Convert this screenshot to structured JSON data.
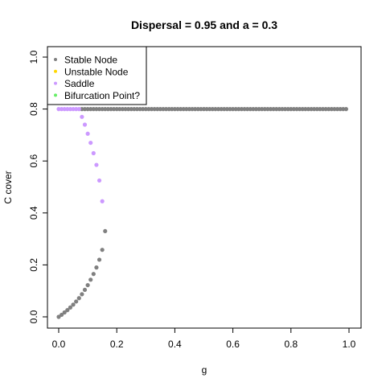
{
  "chart_data": {
    "type": "scatter",
    "title": "Dispersal =  0.95 and a = 0.3",
    "xlabel": "g",
    "ylabel": "C cover",
    "xlim": [
      0,
      1.0
    ],
    "ylim": [
      0,
      1.0
    ],
    "xticks": [
      "0.0",
      "0.2",
      "0.4",
      "0.6",
      "0.8",
      "1.0"
    ],
    "yticks": [
      "0.0",
      "0.2",
      "0.4",
      "0.6",
      "0.8",
      "1.0"
    ],
    "legend_position": "top-left",
    "legend": [
      {
        "label": "Stable Node",
        "color": "#808080"
      },
      {
        "label": "Unstable Node",
        "color": "#FFD700"
      },
      {
        "label": "Saddle",
        "color": "#CC99FF"
      },
      {
        "label": "Bifurcation Point?",
        "color": "#66EE66"
      }
    ],
    "series": [
      {
        "name": "Stable Node",
        "color": "#808080",
        "points": [
          [
            0.0,
            0.0
          ],
          [
            0.01,
            0.008
          ],
          [
            0.02,
            0.017
          ],
          [
            0.03,
            0.026
          ],
          [
            0.04,
            0.036
          ],
          [
            0.05,
            0.047
          ],
          [
            0.06,
            0.059
          ],
          [
            0.07,
            0.072
          ],
          [
            0.08,
            0.087
          ],
          [
            0.09,
            0.104
          ],
          [
            0.1,
            0.122
          ],
          [
            0.11,
            0.143
          ],
          [
            0.12,
            0.165
          ],
          [
            0.13,
            0.19
          ],
          [
            0.14,
            0.22
          ],
          [
            0.15,
            0.258
          ],
          [
            0.16,
            0.33
          ],
          [
            0.08,
            0.8
          ],
          [
            0.09,
            0.8
          ],
          [
            0.1,
            0.8
          ],
          [
            0.11,
            0.8
          ],
          [
            0.12,
            0.8
          ],
          [
            0.13,
            0.8
          ],
          [
            0.14,
            0.8
          ],
          [
            0.15,
            0.8
          ],
          [
            0.16,
            0.8
          ],
          [
            0.17,
            0.8
          ],
          [
            0.18,
            0.8
          ],
          [
            0.19,
            0.8
          ],
          [
            0.2,
            0.8
          ],
          [
            0.21,
            0.8
          ],
          [
            0.22,
            0.8
          ],
          [
            0.23,
            0.8
          ],
          [
            0.24,
            0.8
          ],
          [
            0.25,
            0.8
          ],
          [
            0.26,
            0.8
          ],
          [
            0.27,
            0.8
          ],
          [
            0.28,
            0.8
          ],
          [
            0.29,
            0.8
          ],
          [
            0.3,
            0.8
          ],
          [
            0.31,
            0.8
          ],
          [
            0.32,
            0.8
          ],
          [
            0.33,
            0.8
          ],
          [
            0.34,
            0.8
          ],
          [
            0.35,
            0.8
          ],
          [
            0.36,
            0.8
          ],
          [
            0.37,
            0.8
          ],
          [
            0.38,
            0.8
          ],
          [
            0.39,
            0.8
          ],
          [
            0.4,
            0.8
          ],
          [
            0.41,
            0.8
          ],
          [
            0.42,
            0.8
          ],
          [
            0.43,
            0.8
          ],
          [
            0.44,
            0.8
          ],
          [
            0.45,
            0.8
          ],
          [
            0.46,
            0.8
          ],
          [
            0.47,
            0.8
          ],
          [
            0.48,
            0.8
          ],
          [
            0.49,
            0.8
          ],
          [
            0.5,
            0.8
          ],
          [
            0.51,
            0.8
          ],
          [
            0.52,
            0.8
          ],
          [
            0.53,
            0.8
          ],
          [
            0.54,
            0.8
          ],
          [
            0.55,
            0.8
          ],
          [
            0.56,
            0.8
          ],
          [
            0.57,
            0.8
          ],
          [
            0.58,
            0.8
          ],
          [
            0.59,
            0.8
          ],
          [
            0.6,
            0.8
          ],
          [
            0.61,
            0.8
          ],
          [
            0.62,
            0.8
          ],
          [
            0.63,
            0.8
          ],
          [
            0.64,
            0.8
          ],
          [
            0.65,
            0.8
          ],
          [
            0.66,
            0.8
          ],
          [
            0.67,
            0.8
          ],
          [
            0.68,
            0.8
          ],
          [
            0.69,
            0.8
          ],
          [
            0.7,
            0.8
          ],
          [
            0.71,
            0.8
          ],
          [
            0.72,
            0.8
          ],
          [
            0.73,
            0.8
          ],
          [
            0.74,
            0.8
          ],
          [
            0.75,
            0.8
          ],
          [
            0.76,
            0.8
          ],
          [
            0.77,
            0.8
          ],
          [
            0.78,
            0.8
          ],
          [
            0.79,
            0.8
          ],
          [
            0.8,
            0.8
          ],
          [
            0.81,
            0.8
          ],
          [
            0.82,
            0.8
          ],
          [
            0.83,
            0.8
          ],
          [
            0.84,
            0.8
          ],
          [
            0.85,
            0.8
          ],
          [
            0.86,
            0.8
          ],
          [
            0.87,
            0.8
          ],
          [
            0.88,
            0.8
          ],
          [
            0.89,
            0.8
          ],
          [
            0.9,
            0.8
          ],
          [
            0.91,
            0.8
          ],
          [
            0.92,
            0.8
          ],
          [
            0.93,
            0.8
          ],
          [
            0.94,
            0.8
          ],
          [
            0.95,
            0.8
          ],
          [
            0.96,
            0.8
          ],
          [
            0.97,
            0.8
          ],
          [
            0.98,
            0.8
          ],
          [
            0.99,
            0.8
          ]
        ]
      },
      {
        "name": "Saddle",
        "color": "#CC99FF",
        "points": [
          [
            0.0,
            0.8
          ],
          [
            0.01,
            0.8
          ],
          [
            0.02,
            0.8
          ],
          [
            0.03,
            0.8
          ],
          [
            0.04,
            0.8
          ],
          [
            0.05,
            0.8
          ],
          [
            0.06,
            0.8
          ],
          [
            0.07,
            0.8
          ],
          [
            0.08,
            0.77
          ],
          [
            0.09,
            0.74
          ],
          [
            0.1,
            0.705
          ],
          [
            0.11,
            0.67
          ],
          [
            0.12,
            0.63
          ],
          [
            0.13,
            0.585
          ],
          [
            0.14,
            0.525
          ],
          [
            0.15,
            0.445
          ]
        ]
      }
    ]
  }
}
